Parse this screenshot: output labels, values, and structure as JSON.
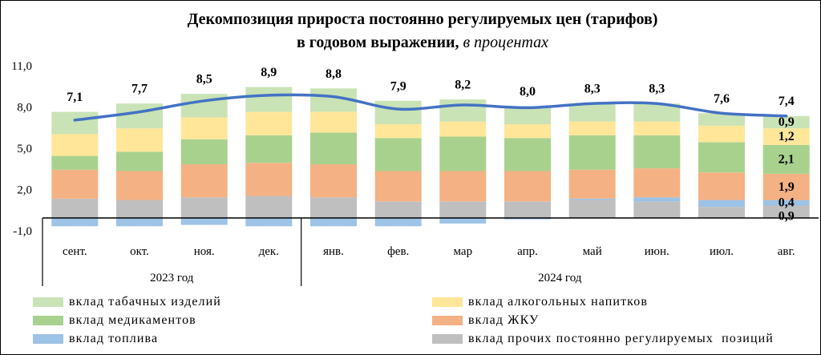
{
  "chart_data": {
    "type": "bar",
    "stacked": true,
    "title": {
      "line1": "Декомпозиция прироста постоянно регулируемых цен (тарифов)",
      "line2": "в годовом выражении,",
      "unit": "в процентах"
    },
    "categories": [
      "сент.",
      "окт.",
      "ноя.",
      "дек.",
      "янв.",
      "фев.",
      "мар",
      "апр.",
      "май",
      "июн.",
      "июл.",
      "авг."
    ],
    "category_groups": [
      {
        "label": "2023 год",
        "categories": [
          "сент.",
          "окт.",
          "ноя.",
          "дек."
        ]
      },
      {
        "label": "2024 год",
        "categories": [
          "янв.",
          "фев.",
          "мар",
          "апр.",
          "май",
          "июн.",
          "июл.",
          "авг."
        ]
      }
    ],
    "ylim": [
      -1,
      11
    ],
    "yticks": [
      11,
      8,
      5,
      2,
      -1
    ],
    "ytick_labels": [
      "11,0",
      "8,0",
      "5,0",
      "2,0",
      "-1,0"
    ],
    "grid": false,
    "legend_position": "bottom",
    "series": [
      {
        "name": "вклад прочих постоянно регулируемых  позиций",
        "color": "#bfbfbf",
        "values": [
          1.4,
          1.3,
          1.5,
          1.6,
          1.5,
          1.2,
          1.2,
          1.2,
          1.3,
          1.2,
          0.8,
          0.9
        ]
      },
      {
        "name": "вклад топлива",
        "color": "#9dc3e6",
        "values": [
          -0.6,
          -0.6,
          -0.5,
          -0.6,
          -0.6,
          -0.6,
          -0.4,
          -0.1,
          0.1,
          0.3,
          0.5,
          0.4
        ]
      },
      {
        "name": "вклад ЖКУ",
        "color": "#f4b183",
        "values": [
          2.1,
          2.1,
          2.4,
          2.4,
          2.4,
          2.2,
          2.2,
          2.2,
          2.1,
          2.1,
          2.0,
          1.9
        ]
      },
      {
        "name": "вклад медикаментов",
        "color": "#a9d18e",
        "values": [
          1.0,
          1.4,
          1.8,
          2.0,
          2.3,
          2.4,
          2.5,
          2.4,
          2.5,
          2.4,
          2.2,
          2.1
        ]
      },
      {
        "name": "вклад алкогольных напитков",
        "color": "#ffe699",
        "values": [
          1.6,
          1.7,
          1.6,
          1.7,
          1.5,
          1.0,
          1.1,
          1.0,
          1.0,
          1.0,
          1.2,
          1.2
        ]
      },
      {
        "name": "вклад табачных изделий",
        "color": "#c9e3b6",
        "values": [
          1.6,
          1.8,
          1.7,
          1.8,
          1.7,
          1.7,
          1.6,
          1.3,
          1.3,
          1.3,
          0.9,
          0.9
        ]
      }
    ],
    "total_line": {
      "type": "line",
      "color": "#4472c4",
      "values": [
        7.1,
        7.7,
        8.5,
        8.9,
        8.8,
        7.9,
        8.2,
        8.0,
        8.3,
        8.3,
        7.6,
        7.4
      ],
      "labels": [
        "7,1",
        "7,7",
        "8,5",
        "8,9",
        "8,8",
        "7,9",
        "8,2",
        "8,0",
        "8,3",
        "8,3",
        "7,6",
        "7,4"
      ]
    },
    "data_labels": [
      {
        "category": "авг.",
        "series": "вклад табачных изделий",
        "text": "0,9"
      },
      {
        "category": "авг.",
        "series": "вклад алкогольных напитков",
        "text": "1,2"
      },
      {
        "category": "авг.",
        "series": "вклад медикаментов",
        "text": "2,1"
      },
      {
        "category": "авг.",
        "series": "вклад ЖКУ",
        "text": "1,9"
      },
      {
        "category": "авг.",
        "series": "вклад топлива",
        "text": "0,4"
      },
      {
        "category": "авг.",
        "series": "вклад прочих постоянно регулируемых  позиций",
        "text": "0,9"
      }
    ]
  }
}
